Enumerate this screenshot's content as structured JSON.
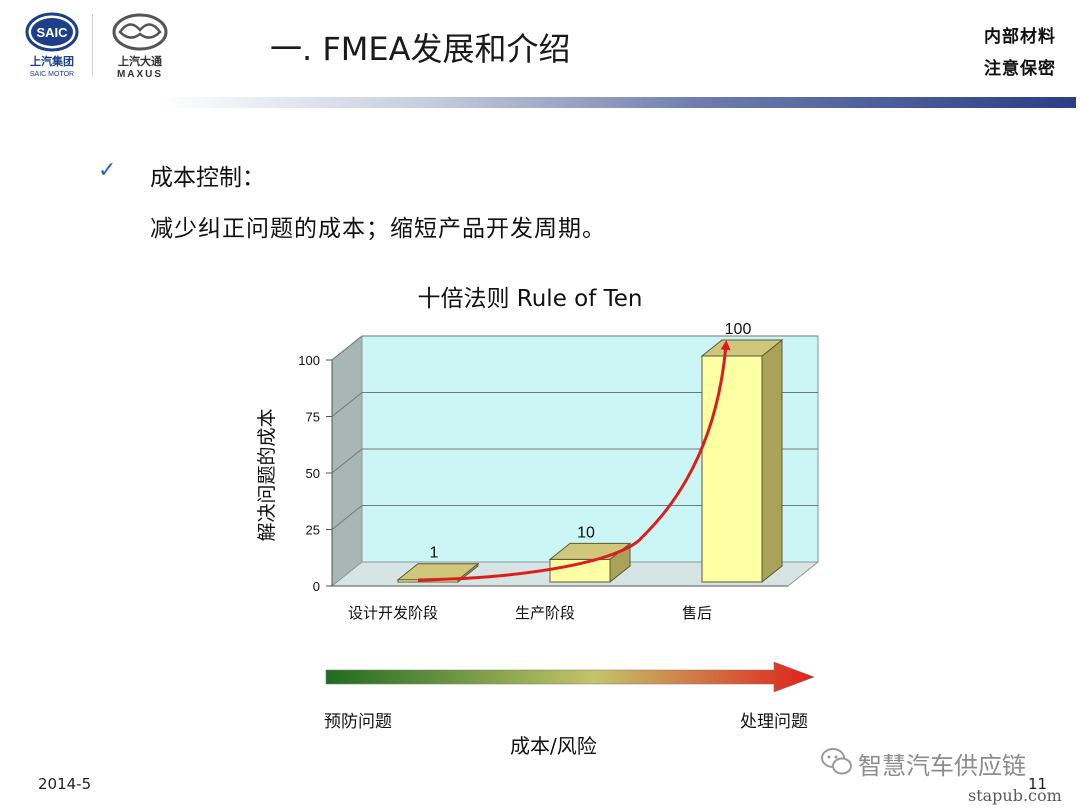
{
  "logos": {
    "saic_mark": "SAIC",
    "saic_cn": "上汽集团",
    "saic_en": "SAIC MOTOR",
    "maxus_cn": "上汽大通",
    "maxus_en": "MAXUS"
  },
  "header": {
    "title": "一. FMEA发展和介绍",
    "confidential_line1": "内部材料",
    "confidential_line2": "注意保密"
  },
  "content": {
    "bullet_icon": "checkmark-icon",
    "bullet_text": "成本控制：",
    "body_text": "减少纠正问题的成本；缩短产品开发周期。"
  },
  "chart_data": {
    "type": "bar",
    "title": "十倍法则 Rule of Ten",
    "xlabel": "",
    "ylabel": "解决问题的成本",
    "categories": [
      "设计开发阶段",
      "生产阶段",
      "售后"
    ],
    "values": [
      1,
      10,
      100
    ],
    "data_labels": [
      "1",
      "10",
      "100"
    ],
    "yticks": [
      0,
      25,
      50,
      75,
      100
    ],
    "ylim": [
      0,
      100
    ],
    "grid": true,
    "style": "3d",
    "colors": {
      "bar": "#ffffa3",
      "bar_top": "#cfc87a",
      "bar_side": "#a9a35a",
      "wall": "#ccf6f6",
      "floor": "#d6e4e4",
      "trend": "#dd1d1d"
    }
  },
  "cost_arrow": {
    "left_label": "预防问题",
    "right_label": "处理问题",
    "caption": "成本/风险",
    "colors": {
      "start": "#1f6b1f",
      "mid": "#c4c46a",
      "end": "#e0201b"
    }
  },
  "footer": {
    "date": "2014-5",
    "page": "11",
    "wechat_name": "智慧汽车供应链",
    "site": "stapub.com"
  }
}
